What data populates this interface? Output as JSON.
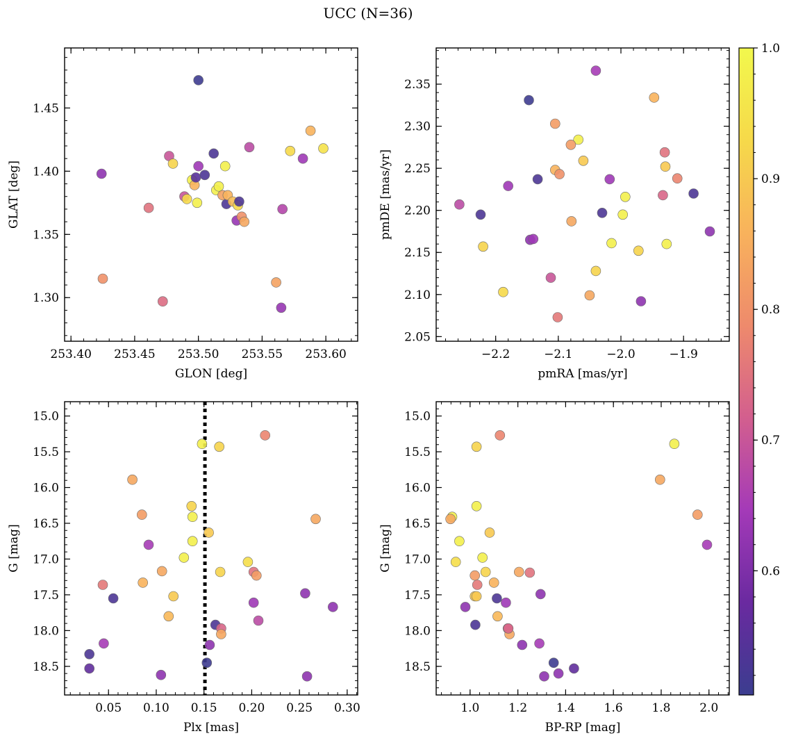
{
  "figure_title": "UCC (N=36)",
  "colorbar": {
    "min": 0.505,
    "max": 1.0,
    "ticks": [
      "0.6",
      "0.7",
      "0.8",
      "0.9",
      "1.0"
    ],
    "tick_values": [
      0.6,
      0.7,
      0.8,
      0.9,
      1.0
    ],
    "colormap": "plasma",
    "stops": [
      "#3b3d8f",
      "#6a2aa0",
      "#a43ab8",
      "#d35f8e",
      "#ee8a6c",
      "#f8b25c",
      "#f6d94a",
      "#f2f84d"
    ]
  },
  "chart_data": [
    {
      "type": "scatter",
      "xlabel": "GLON [deg]",
      "ylabel": "GLAT [deg]",
      "xlim": [
        253.395,
        253.625
      ],
      "ylim": [
        1.2655,
        1.4975
      ],
      "invert_y": false,
      "xticks": [
        253.4,
        253.45,
        253.5,
        253.55,
        253.6
      ],
      "xticklabels": [
        "253.40",
        "253.45",
        "253.50",
        "253.55",
        "253.60"
      ],
      "yticks": [
        1.3,
        1.35,
        1.4,
        1.45
      ],
      "yticklabels": [
        "1.30",
        "1.35",
        "1.40",
        "1.45"
      ],
      "x": [
        253.5,
        253.424,
        253.461,
        253.425,
        253.472,
        253.477,
        253.48,
        253.489,
        253.491,
        253.495,
        253.497,
        253.498,
        253.499,
        253.5,
        253.505,
        253.512,
        253.514,
        253.516,
        253.519,
        253.521,
        253.522,
        253.523,
        253.527,
        253.53,
        253.531,
        253.532,
        253.534,
        253.536,
        253.54,
        253.561,
        253.565,
        253.566,
        253.572,
        253.582,
        253.588,
        253.598
      ],
      "y": [
        1.472,
        1.398,
        1.371,
        1.315,
        1.297,
        1.412,
        1.406,
        1.38,
        1.378,
        1.393,
        1.389,
        1.395,
        1.375,
        1.404,
        1.397,
        1.414,
        1.385,
        1.388,
        1.381,
        1.404,
        1.374,
        1.381,
        1.376,
        1.361,
        1.373,
        1.376,
        1.364,
        1.36,
        1.419,
        1.312,
        1.292,
        1.37,
        1.416,
        1.41,
        1.432,
        1.418
      ],
      "color_values": [
        0.51,
        0.62,
        0.75,
        0.8,
        0.74,
        0.7,
        0.92,
        0.7,
        0.93,
        0.98,
        0.86,
        0.55,
        0.98,
        0.64,
        0.53,
        0.53,
        0.98,
        0.98,
        0.83,
        0.98,
        0.53,
        0.86,
        0.88,
        0.63,
        0.93,
        0.53,
        0.8,
        0.84,
        0.68,
        0.83,
        0.63,
        0.67,
        0.93,
        0.64,
        0.86,
        0.95
      ]
    },
    {
      "type": "scatter",
      "xlabel": "pmRA [mas/yr]",
      "ylabel": "pmDE [mas/yr]",
      "xlim": [
        -2.295,
        -1.827
      ],
      "ylim": [
        2.0445,
        2.393
      ],
      "invert_y": false,
      "xticks": [
        -2.2,
        -2.1,
        -2.0,
        -1.9
      ],
      "xticklabels": [
        "−2.2",
        "−2.1",
        "−2.0",
        "−1.9"
      ],
      "yticks": [
        2.05,
        2.1,
        2.15,
        2.2,
        2.25,
        2.3,
        2.35
      ],
      "yticklabels": [
        "2.05",
        "2.10",
        "2.15",
        "2.20",
        "2.25",
        "2.30",
        "2.35"
      ],
      "x": [
        -2.04,
        -2.147,
        -2.105,
        -2.068,
        -2.08,
        -2.133,
        -2.18,
        -2.258,
        -2.224,
        -2.105,
        -2.098,
        -2.06,
        -2.018,
        -1.947,
        -1.93,
        -1.929,
        -1.91,
        -1.933,
        -1.993,
        -2.03,
        -1.884,
        -1.858,
        -2.079,
        -2.145,
        -2.14,
        -2.22,
        -2.015,
        -1.972,
        -1.927,
        -2.04,
        -2.188,
        -2.112,
        -2.05,
        -2.101,
        -1.968,
        -1.997
      ],
      "y": [
        2.366,
        2.331,
        2.303,
        2.284,
        2.278,
        2.237,
        2.229,
        2.207,
        2.195,
        2.248,
        2.243,
        2.259,
        2.237,
        2.334,
        2.269,
        2.252,
        2.238,
        2.218,
        2.216,
        2.197,
        2.22,
        2.175,
        2.187,
        2.165,
        2.166,
        2.157,
        2.161,
        2.152,
        2.16,
        2.128,
        2.103,
        2.12,
        2.099,
        2.073,
        2.092,
        2.195
      ],
      "color_values": [
        0.65,
        0.51,
        0.82,
        0.98,
        0.82,
        0.53,
        0.64,
        0.68,
        0.53,
        0.86,
        0.8,
        0.9,
        0.64,
        0.86,
        0.75,
        0.9,
        0.78,
        0.73,
        0.98,
        0.53,
        0.53,
        0.62,
        0.84,
        0.62,
        0.64,
        0.92,
        0.98,
        0.92,
        0.98,
        0.92,
        0.93,
        0.7,
        0.84,
        0.76,
        0.62,
        0.98
      ]
    },
    {
      "type": "scatter",
      "xlabel": "Plx [mas]",
      "ylabel": "G [mag]",
      "xlim": [
        0.004,
        0.311
      ],
      "ylim": [
        14.8,
        18.9
      ],
      "invert_y": true,
      "xticks": [
        0.05,
        0.1,
        0.15,
        0.2,
        0.25,
        0.3
      ],
      "xticklabels": [
        "0.05",
        "0.10",
        "0.15",
        "0.20",
        "0.25",
        "0.30"
      ],
      "yticks": [
        15.0,
        15.5,
        16.0,
        16.5,
        17.0,
        17.5,
        18.0,
        18.5
      ],
      "yticklabels": [
        "15.0",
        "15.5",
        "16.0",
        "16.5",
        "17.0",
        "17.5",
        "18.0",
        "18.5"
      ],
      "vline": {
        "x": 0.151,
        "style": "dotted"
      },
      "x": [
        0.214,
        0.148,
        0.166,
        0.075,
        0.085,
        0.267,
        0.137,
        0.138,
        0.092,
        0.138,
        0.155,
        0.129,
        0.196,
        0.106,
        0.167,
        0.202,
        0.205,
        0.044,
        0.086,
        0.055,
        0.118,
        0.256,
        0.285,
        0.113,
        0.202,
        0.162,
        0.168,
        0.168,
        0.207,
        0.045,
        0.156,
        0.03,
        0.153,
        0.03,
        0.105,
        0.258
      ],
      "y": [
        15.27,
        15.39,
        15.43,
        15.89,
        16.38,
        16.44,
        16.26,
        16.41,
        16.8,
        16.75,
        16.63,
        16.98,
        17.04,
        17.17,
        17.18,
        17.18,
        17.23,
        17.36,
        17.33,
        17.55,
        17.52,
        17.48,
        17.67,
        17.8,
        17.61,
        17.92,
        17.97,
        18.05,
        17.86,
        18.18,
        18.2,
        18.33,
        18.45,
        18.53,
        18.62,
        18.64
      ],
      "color_values": [
        0.78,
        0.98,
        0.92,
        0.84,
        0.82,
        0.84,
        0.92,
        0.98,
        0.65,
        0.98,
        0.9,
        0.98,
        0.94,
        0.84,
        0.92,
        0.75,
        0.82,
        0.76,
        0.86,
        0.53,
        0.9,
        0.62,
        0.62,
        0.87,
        0.64,
        0.53,
        0.73,
        0.84,
        0.68,
        0.65,
        0.62,
        0.53,
        0.51,
        0.56,
        0.62,
        0.62
      ]
    },
    {
      "type": "scatter",
      "xlabel": "BP-RP [mag]",
      "ylabel": "G [mag]",
      "xlim": [
        0.858,
        2.085
      ],
      "ylim": [
        14.8,
        18.9
      ],
      "invert_y": true,
      "xticks": [
        1.0,
        1.2,
        1.4,
        1.6,
        1.8,
        2.0
      ],
      "xticklabels": [
        "1.0",
        "1.2",
        "1.4",
        "1.6",
        "1.8",
        "2.0"
      ],
      "yticks": [
        15.0,
        15.5,
        16.0,
        16.5,
        17.0,
        17.5,
        18.0,
        18.5
      ],
      "yticklabels": [
        "15.0",
        "15.5",
        "16.0",
        "16.5",
        "17.0",
        "17.5",
        "18.0",
        "18.5"
      ],
      "x": [
        1.125,
        1.855,
        1.027,
        1.795,
        1.952,
        1.992,
        1.027,
        0.925,
        0.918,
        0.955,
        1.082,
        1.052,
        0.94,
        1.065,
        1.1,
        1.205,
        1.25,
        1.02,
        1.03,
        1.02,
        1.295,
        1.112,
        0.98,
        1.115,
        1.15,
        1.022,
        1.158,
        1.165,
        1.29,
        1.218,
        1.35,
        1.37,
        1.31,
        1.435,
        1.027,
        1.16
      ],
      "y": [
        15.27,
        15.39,
        15.43,
        15.89,
        16.38,
        16.8,
        16.26,
        16.41,
        16.44,
        16.75,
        16.63,
        16.98,
        17.04,
        17.18,
        17.33,
        17.18,
        17.19,
        17.23,
        17.36,
        17.52,
        17.49,
        17.55,
        17.67,
        17.8,
        17.61,
        17.92,
        17.97,
        18.05,
        18.18,
        18.2,
        18.45,
        18.6,
        18.64,
        18.53,
        17.52,
        17.97
      ],
      "color_values": [
        0.78,
        0.98,
        0.92,
        0.84,
        0.82,
        0.65,
        0.98,
        0.98,
        0.84,
        0.98,
        0.9,
        0.98,
        0.94,
        0.92,
        0.86,
        0.84,
        0.75,
        0.82,
        0.76,
        0.9,
        0.62,
        0.53,
        0.62,
        0.87,
        0.64,
        0.53,
        0.73,
        0.84,
        0.65,
        0.62,
        0.51,
        0.62,
        0.62,
        0.56,
        0.9,
        0.73
      ]
    }
  ]
}
